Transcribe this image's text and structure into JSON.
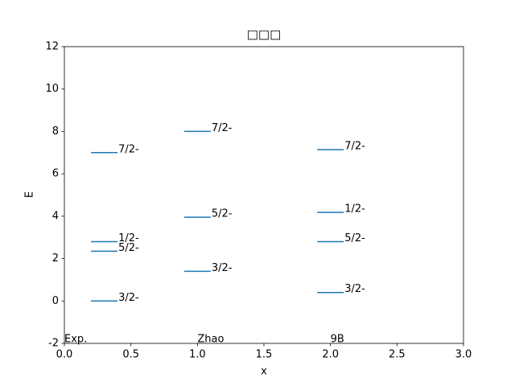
{
  "chart_data": {
    "type": "levels",
    "title": "□□□",
    "xlabel": "x",
    "ylabel": "E",
    "xlim": [
      0,
      3
    ],
    "ylim": [
      -2,
      12
    ],
    "xticks": [
      {
        "value": 0,
        "label": "0.0"
      },
      {
        "value": 0.5,
        "label": "0.5"
      },
      {
        "value": 1,
        "label": "1.0"
      },
      {
        "value": 1.5,
        "label": "1.5"
      },
      {
        "value": 2,
        "label": "2.0"
      },
      {
        "value": 2.5,
        "label": "2.5"
      },
      {
        "value": 3,
        "label": "3.0"
      }
    ],
    "yticks": [
      -2,
      0,
      2,
      4,
      6,
      8,
      10,
      12
    ],
    "color": "#1f77b4",
    "series": [
      {
        "name": "Exp.",
        "name_x": 0,
        "xrange": [
          0.2,
          0.4
        ],
        "values": [
          0,
          2.35,
          2.8,
          7.0
        ],
        "labels": [
          "3/2-",
          "5/2-",
          "1/2-",
          "7/2-"
        ]
      },
      {
        "name": "Zhao",
        "name_x": 1,
        "xrange": [
          0.9,
          1.1
        ],
        "values": [
          1.4,
          3.95,
          8.0
        ],
        "labels": [
          "3/2-",
          "5/2-",
          "7/2-"
        ]
      },
      {
        "name": "9B",
        "name_x": 2,
        "xrange": [
          1.9,
          2.1
        ],
        "values": [
          0.4,
          2.8,
          4.18,
          7.14
        ],
        "labels": [
          "3/2-",
          "5/2-",
          "1/2-",
          "7/2-"
        ]
      }
    ],
    "name_y": -2
  }
}
